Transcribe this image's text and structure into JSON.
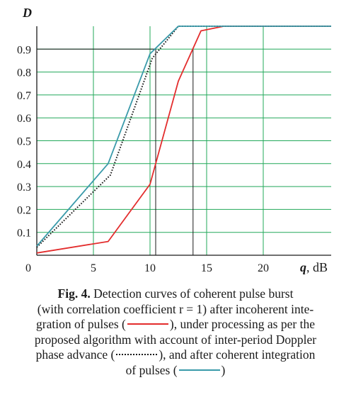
{
  "chart_data": {
    "type": "line",
    "ylabel": "D",
    "xlabel": "q, dB",
    "xlim": [
      0,
      26
    ],
    "ylim": [
      0,
      1.0
    ],
    "xticks": [
      0,
      5,
      10,
      15,
      20
    ],
    "yticks": [
      0.1,
      0.2,
      0.3,
      0.4,
      0.5,
      0.6,
      0.7,
      0.8,
      0.9
    ],
    "ytick_labels": [
      "0.1",
      "0.2",
      "0.3",
      "0.4",
      "0.5",
      "0.6",
      "0.7",
      "0.8",
      "0.9"
    ],
    "xtick_labels": [
      "0",
      "5",
      "10",
      "15",
      "20"
    ],
    "extra_vlines": [
      10.5,
      13.8
    ],
    "grid": true,
    "series": [
      {
        "style": "red",
        "color": "#e32d2d",
        "x": [
          0,
          6.3,
          10,
          12.5,
          14.5,
          16.5,
          26
        ],
        "y": [
          0.01,
          0.06,
          0.31,
          0.76,
          0.98,
          1.0,
          1.0
        ]
      },
      {
        "style": "dotted",
        "color": "#1a1a1a",
        "x": [
          0,
          6.5,
          10.2,
          12.5,
          13.5,
          26
        ],
        "y": [
          0.035,
          0.35,
          0.86,
          1.0,
          1.0,
          1.0
        ]
      },
      {
        "style": "teal",
        "color": "#3a9aaa",
        "x": [
          0,
          6.3,
          10,
          12.5,
          26
        ],
        "y": [
          0.04,
          0.4,
          0.88,
          1.0,
          1.0
        ]
      }
    ]
  },
  "caption": {
    "fig_label": "Fig. 4.",
    "line1": "Detection curves of coherent pulse burst",
    "line2": "(with correlation coefficient r = 1) after incoherent inte-",
    "line3a": "gration of pulses (",
    "line3b": "), under processing as per the",
    "line4": "proposed algorithm with account of inter-period Doppler",
    "line5a": "phase advance (",
    "line5b": "), and after coherent integration",
    "line6a": "of pulses (",
    "line6b": ")"
  }
}
